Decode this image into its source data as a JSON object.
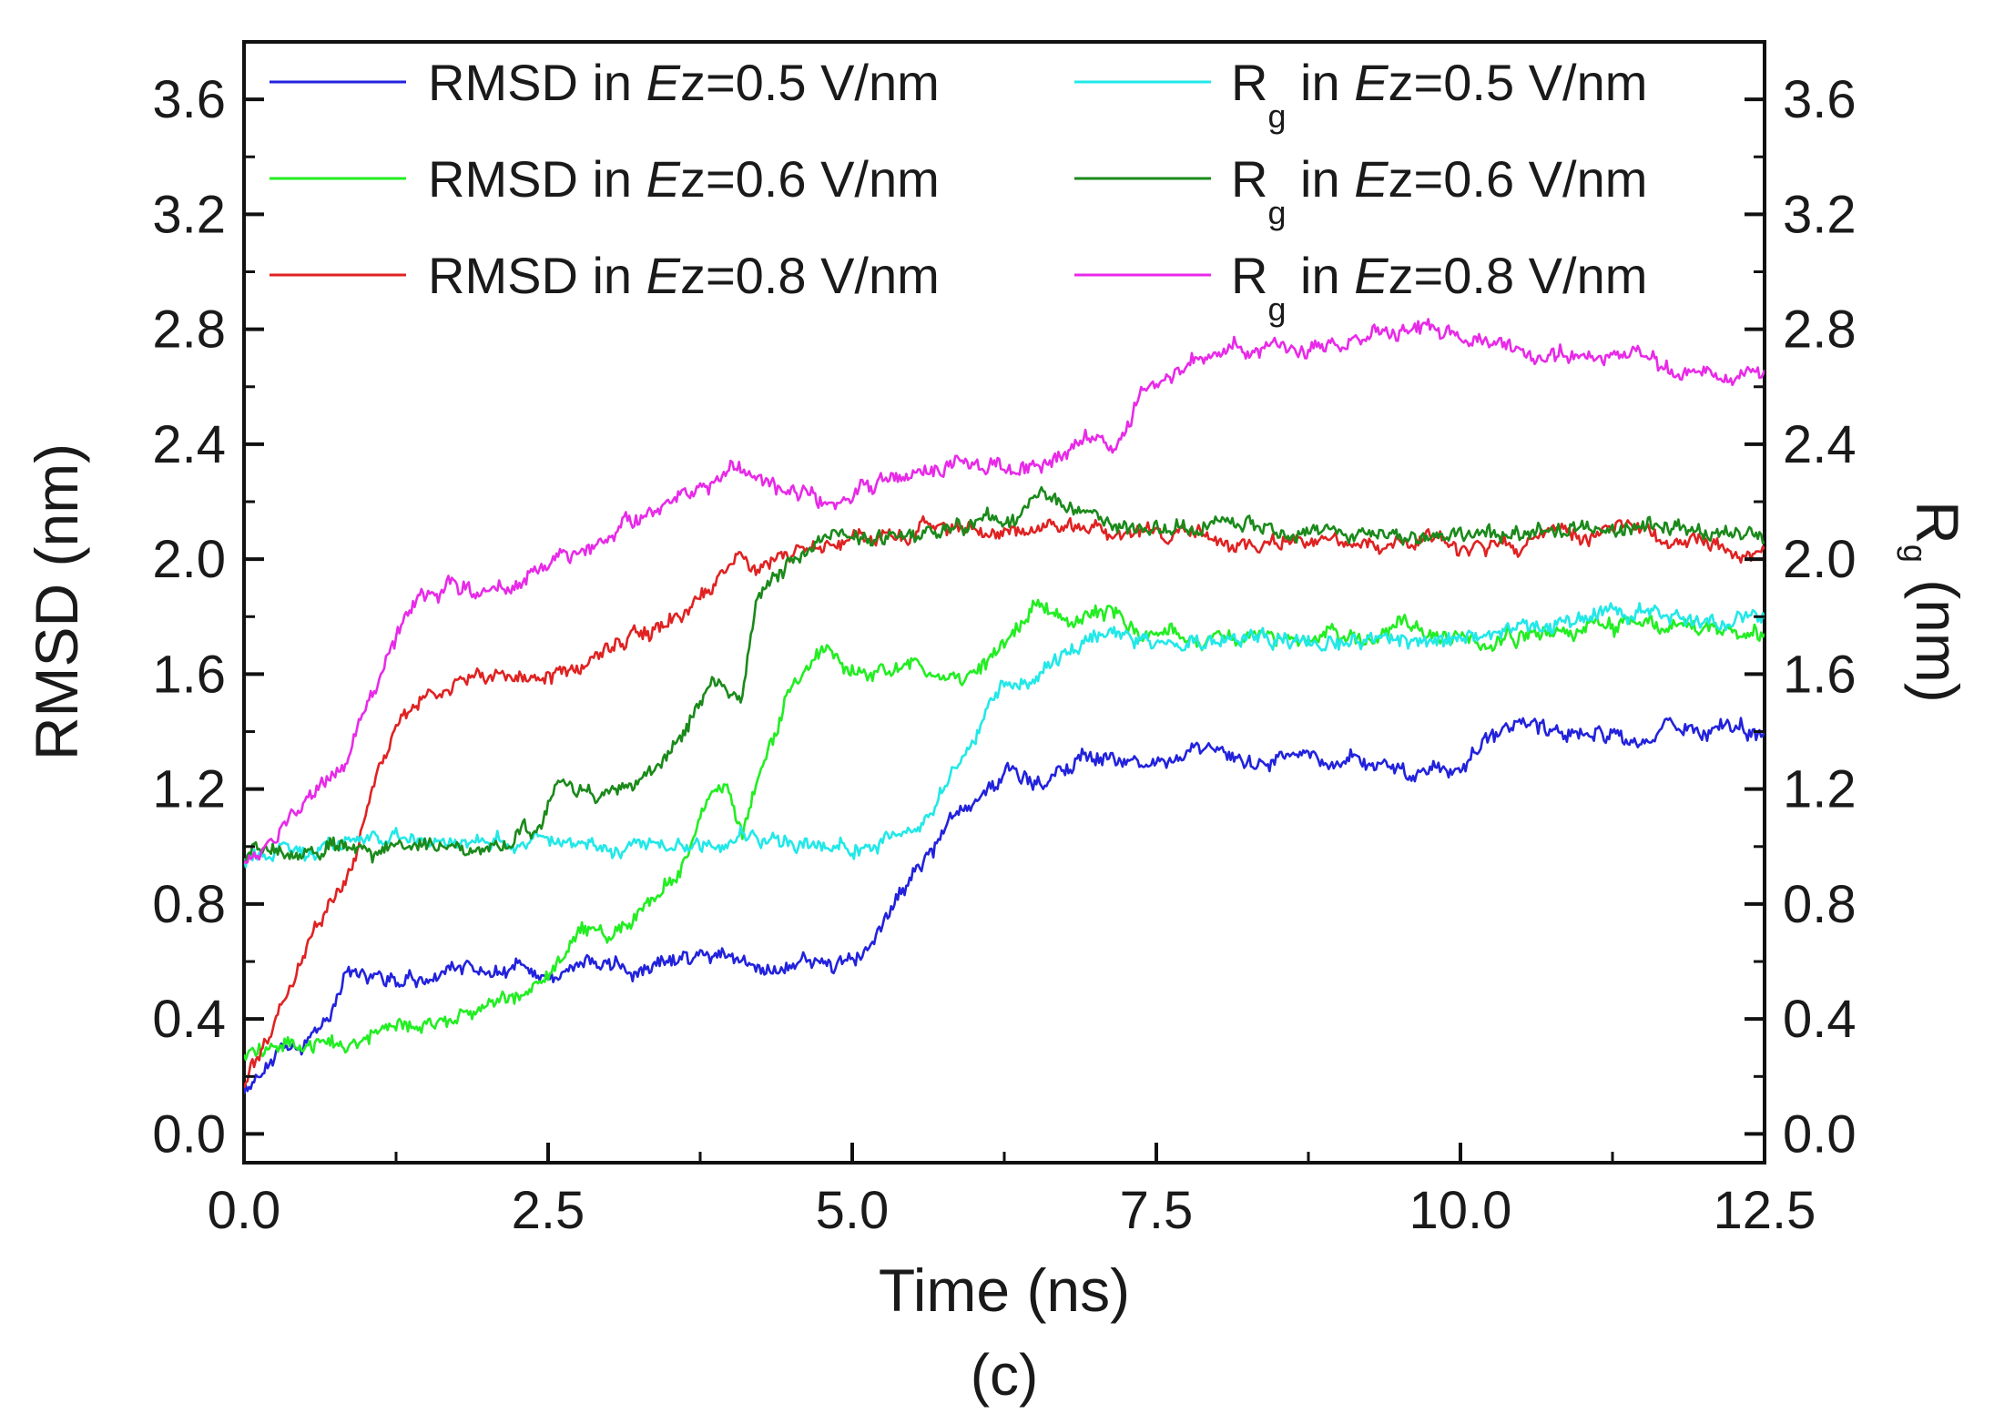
{
  "chart_data": {
    "type": "line",
    "caption": "(c)",
    "xlabel": "Time (ns)",
    "ylabel": "RMSD (nm)",
    "ylabel_right": {
      "main": "R",
      "sub": "g",
      "rest": " (nm)"
    },
    "xlim": [
      0,
      12.5
    ],
    "ylim": [
      -0.1,
      3.8
    ],
    "ylim_right": [
      -0.1,
      3.8
    ],
    "x_ticks": [
      "0.0",
      "2.5",
      "5.0",
      "7.5",
      "10.0",
      "12.5"
    ],
    "y_ticks": [
      "0.0",
      "0.4",
      "0.8",
      "1.2",
      "1.6",
      "2.0",
      "2.4",
      "2.8",
      "3.2",
      "3.6"
    ],
    "y_ticks_right": [
      "0.0",
      "0.4",
      "0.8",
      "1.2",
      "1.6",
      "2.0",
      "2.4",
      "2.8",
      "3.2",
      "3.6"
    ],
    "grid": false,
    "legend_position": "top",
    "series": [
      {
        "name": "RMSD in Ez=0.5 V/nm",
        "label": {
          "prefix": "RMSD in ",
          "italic": "E",
          "suffix": "z=0.5 V/nm"
        },
        "color": "#2222dd",
        "x": [
          0,
          0.2,
          0.5,
          0.7,
          0.85,
          1.0,
          1.3,
          1.8,
          2.2,
          2.5,
          2.8,
          3.2,
          3.6,
          3.9,
          4.2,
          4.6,
          5.0,
          5.2,
          5.5,
          5.8,
          6.0,
          6.3,
          6.6,
          6.9,
          7.2,
          7.5,
          8.0,
          8.3,
          8.7,
          9.0,
          9.4,
          9.7,
          10.0,
          10.3,
          10.5,
          10.8,
          11.1,
          11.4,
          11.7,
          12.0,
          12.5
        ],
        "y": [
          0.16,
          0.26,
          0.3,
          0.42,
          0.58,
          0.57,
          0.53,
          0.57,
          0.58,
          0.54,
          0.6,
          0.56,
          0.6,
          0.62,
          0.58,
          0.6,
          0.6,
          0.68,
          0.9,
          1.08,
          1.18,
          1.26,
          1.22,
          1.33,
          1.3,
          1.29,
          1.32,
          1.29,
          1.32,
          1.3,
          1.27,
          1.24,
          1.28,
          1.36,
          1.45,
          1.39,
          1.42,
          1.36,
          1.4,
          1.42,
          1.38
        ]
      },
      {
        "name": "RMSD in Ez=0.6 V/nm",
        "label": {
          "prefix": "RMSD in ",
          "italic": "E",
          "suffix": "z=0.6 V/nm"
        },
        "color": "#22ee22",
        "x": [
          0,
          0.3,
          0.7,
          1.0,
          1.4,
          1.8,
          2.2,
          2.5,
          2.7,
          3.0,
          3.3,
          3.6,
          3.8,
          3.95,
          4.1,
          4.3,
          4.5,
          4.8,
          5.0,
          5.3,
          5.6,
          5.9,
          6.2,
          6.5,
          6.8,
          7.1,
          7.4,
          7.7,
          8.0,
          8.5,
          9.0,
          9.5,
          10.0,
          10.5,
          11.0,
          11.5,
          12.0,
          12.5
        ],
        "y": [
          0.28,
          0.3,
          0.32,
          0.33,
          0.38,
          0.42,
          0.48,
          0.55,
          0.68,
          0.7,
          0.8,
          0.92,
          1.15,
          1.22,
          1.05,
          1.35,
          1.55,
          1.7,
          1.62,
          1.6,
          1.62,
          1.58,
          1.68,
          1.85,
          1.78,
          1.82,
          1.74,
          1.72,
          1.72,
          1.72,
          1.7,
          1.75,
          1.73,
          1.72,
          1.75,
          1.78,
          1.76,
          1.75
        ]
      },
      {
        "name": "RMSD in Ez=0.8 V/nm",
        "label": {
          "prefix": "RMSD in ",
          "italic": "E",
          "suffix": "z=0.8 V/nm"
        },
        "color": "#e02222",
        "x": [
          0,
          0.2,
          0.45,
          0.7,
          0.9,
          1.1,
          1.3,
          1.5,
          1.8,
          2.1,
          2.4,
          2.7,
          3.0,
          3.3,
          3.6,
          3.9,
          4.05,
          4.2,
          4.4,
          4.7,
          5.0,
          5.5,
          6.0,
          6.5,
          7.0,
          7.5,
          8.0,
          8.5,
          9.0,
          9.5,
          10.0,
          10.5,
          11.0,
          11.5,
          12.0,
          12.5
        ],
        "y": [
          0.18,
          0.33,
          0.6,
          0.8,
          0.95,
          1.25,
          1.45,
          1.52,
          1.58,
          1.6,
          1.57,
          1.62,
          1.7,
          1.74,
          1.8,
          1.9,
          2.03,
          1.96,
          2.01,
          2.05,
          2.08,
          2.1,
          2.1,
          2.1,
          2.12,
          2.08,
          2.07,
          2.06,
          2.05,
          2.07,
          2.06,
          2.05,
          2.08,
          2.1,
          2.05,
          2.02
        ]
      },
      {
        "name": "Rg in Ez=0.5 V/nm",
        "label": {
          "prefix": "R",
          "sub": "g",
          "mid": " in ",
          "italic": "E",
          "suffix": "z=0.5 V/nm"
        },
        "color": "#22e8e8",
        "x": [
          0,
          0.5,
          1.0,
          1.5,
          2.0,
          2.5,
          3.0,
          3.5,
          4.0,
          4.5,
          5.0,
          5.3,
          5.6,
          5.9,
          6.2,
          6.5,
          6.8,
          7.1,
          7.4,
          7.7,
          8.0,
          8.5,
          9.0,
          9.5,
          10.0,
          10.5,
          11.0,
          11.5,
          12.0,
          12.5
        ],
        "y": [
          0.96,
          0.98,
          1.02,
          1.02,
          1.0,
          1.01,
          1.0,
          1.01,
          1.03,
          1.01,
          1.0,
          1.02,
          1.1,
          1.3,
          1.55,
          1.6,
          1.7,
          1.75,
          1.72,
          1.7,
          1.72,
          1.72,
          1.7,
          1.7,
          1.72,
          1.75,
          1.8,
          1.82,
          1.78,
          1.8
        ]
      },
      {
        "name": "Rg in Ez=0.6 V/nm",
        "label": {
          "prefix": "R",
          "sub": "g",
          "mid": " in ",
          "italic": "E",
          "suffix": "z=0.6 V/nm"
        },
        "color": "#1a8a1a",
        "x": [
          0,
          0.5,
          1.0,
          1.5,
          2.0,
          2.4,
          2.6,
          2.9,
          3.2,
          3.5,
          3.7,
          3.85,
          4.0,
          4.1,
          4.2,
          4.35,
          4.6,
          4.9,
          5.2,
          5.5,
          5.8,
          6.1,
          6.3,
          6.5,
          6.7,
          7.0,
          7.3,
          7.6,
          8.0,
          8.5,
          9.0,
          9.5,
          10.0,
          10.5,
          11.0,
          11.5,
          12.0,
          12.5
        ],
        "y": [
          0.97,
          0.97,
          0.99,
          1.0,
          1.0,
          1.05,
          1.22,
          1.15,
          1.2,
          1.3,
          1.45,
          1.6,
          1.52,
          1.55,
          1.85,
          1.93,
          2.02,
          2.08,
          2.06,
          2.08,
          2.1,
          2.12,
          2.15,
          2.23,
          2.2,
          2.15,
          2.12,
          2.1,
          2.12,
          2.1,
          2.1,
          2.08,
          2.07,
          2.1,
          2.1,
          2.12,
          2.08,
          2.08
        ]
      },
      {
        "name": "Rg in Ez=0.8 V/nm",
        "label": {
          "prefix": "R",
          "sub": "g",
          "mid": " in ",
          "italic": "E",
          "suffix": "z=0.8 V/nm"
        },
        "color": "#e82ae8",
        "x": [
          0,
          0.2,
          0.5,
          0.8,
          1.0,
          1.2,
          1.4,
          1.7,
          2.0,
          2.3,
          2.6,
          3.0,
          3.4,
          3.8,
          4.0,
          4.4,
          4.8,
          5.2,
          5.6,
          6.0,
          6.2,
          6.5,
          7.0,
          7.2,
          7.4,
          7.6,
          7.8,
          8.0,
          8.4,
          8.8,
          9.0,
          9.3,
          9.6,
          10.0,
          10.5,
          11.0,
          11.3,
          11.7,
          12.0,
          12.5
        ],
        "y": [
          0.95,
          1.0,
          1.15,
          1.25,
          1.45,
          1.68,
          1.85,
          1.9,
          1.88,
          1.93,
          2.0,
          2.08,
          2.18,
          2.25,
          2.32,
          2.25,
          2.2,
          2.28,
          2.32,
          2.35,
          2.32,
          2.32,
          2.42,
          2.4,
          2.58,
          2.62,
          2.68,
          2.72,
          2.75,
          2.73,
          2.72,
          2.78,
          2.82,
          2.78,
          2.72,
          2.7,
          2.72,
          2.66,
          2.65,
          2.64
        ]
      }
    ]
  }
}
